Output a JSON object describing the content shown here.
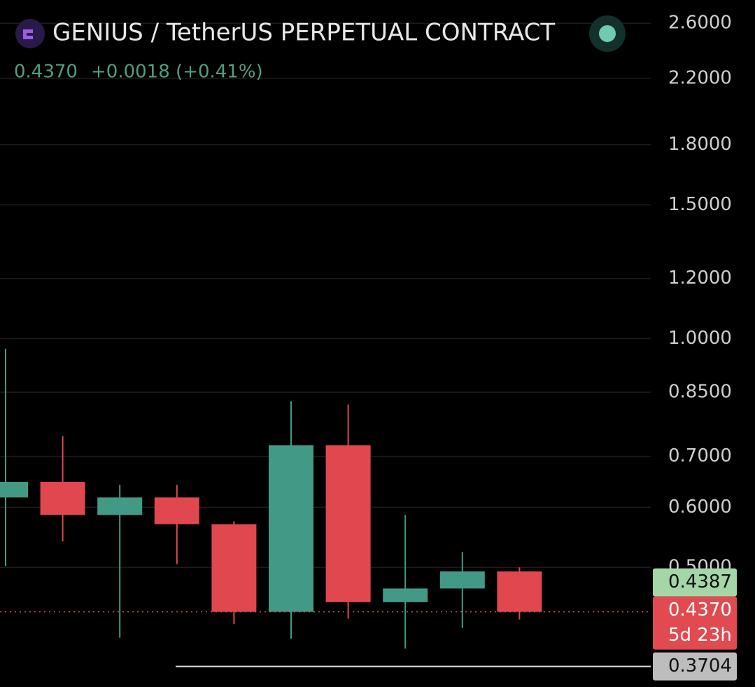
{
  "chart_data": {
    "type": "candlestick",
    "title": "GENIUS / TetherUS PERPETUAL CONTRACT",
    "quote": {
      "price": "0.4370",
      "change": "+0.0018 (+0.41%)"
    },
    "open": [
      0.618,
      0.648,
      0.586,
      0.618,
      0.57,
      0.437,
      0.724,
      0.45,
      0.469,
      0.494
    ],
    "high": [
      0.97,
      0.744,
      0.642,
      0.642,
      0.575,
      0.827,
      0.819,
      0.586,
      0.524,
      0.5
    ],
    "low": [
      0.502,
      0.541,
      0.404,
      0.505,
      0.421,
      0.403,
      0.428,
      0.391,
      0.416,
      0.427
    ],
    "close": [
      0.648,
      0.586,
      0.618,
      0.57,
      0.437,
      0.724,
      0.45,
      0.469,
      0.494,
      0.437
    ],
    "up_color": "#429a86",
    "down_color": "#e0474f",
    "log_scale": true,
    "grid": true,
    "ylim": [
      0.348,
      2.79
    ],
    "yticks": [
      {
        "value": 2.6,
        "label": "2.6000"
      },
      {
        "value": 2.2,
        "label": "2.2000"
      },
      {
        "value": 1.8,
        "label": "1.8000"
      },
      {
        "value": 1.5,
        "label": "1.5000"
      },
      {
        "value": 1.2,
        "label": "1.2000"
      },
      {
        "value": 1.0,
        "label": "1.0000"
      },
      {
        "value": 0.85,
        "label": "0.8500"
      },
      {
        "value": 0.7,
        "label": "0.7000"
      },
      {
        "value": 0.6,
        "label": "0.6000"
      },
      {
        "value": 0.5,
        "label": "0.5000"
      }
    ],
    "price_lines": [
      {
        "value": 0.4387,
        "label": "0.4387",
        "color": "#a5d6a7"
      },
      {
        "value": 0.437,
        "label": "0.4370",
        "sublabel": "5d 23h",
        "color": "#e04a50"
      },
      {
        "value": 0.3704,
        "label": "0.3704",
        "color": "#bdbdbd"
      }
    ]
  }
}
